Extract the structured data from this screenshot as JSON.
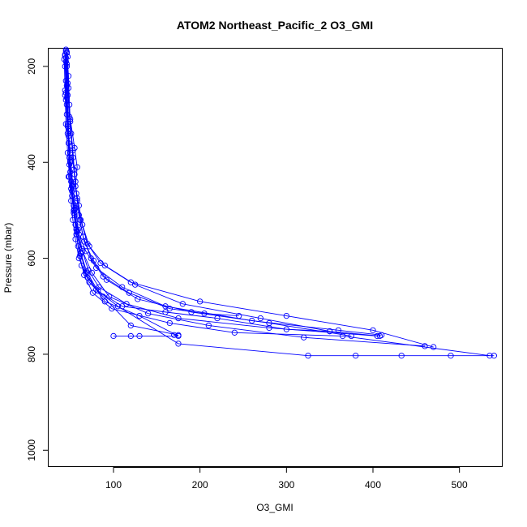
{
  "chart_data": {
    "type": "line",
    "title": "ATOM2 Northeast_Pacific_2 O3_GMI",
    "xlabel": "O3_GMI",
    "ylabel": "Pressure (mbar)",
    "xlim": [
      25,
      550
    ],
    "ylim": [
      1035,
      163
    ],
    "y_reversed": true,
    "grid": false,
    "x_ticks": [
      100,
      200,
      300,
      400,
      500
    ],
    "y_ticks": [
      200,
      400,
      600,
      800,
      1000
    ],
    "color": "#0000ff",
    "markers": "open-circle",
    "series": [
      {
        "values": [
          [
            45,
            165
          ],
          [
            46,
            200
          ],
          [
            44,
            260
          ],
          [
            47,
            320
          ],
          [
            50,
            380
          ],
          [
            48,
            430
          ],
          [
            52,
            470
          ],
          [
            55,
            510
          ],
          [
            60,
            550
          ],
          [
            68,
            585
          ],
          [
            80,
            620
          ],
          [
            110,
            660
          ],
          [
            160,
            700
          ],
          [
            260,
            730
          ],
          [
            360,
            750
          ],
          [
            410,
            760
          ]
        ]
      },
      {
        "values": [
          [
            46,
            170
          ],
          [
            48,
            220
          ],
          [
            49,
            280
          ],
          [
            51,
            340
          ],
          [
            53,
            390
          ],
          [
            56,
            440
          ],
          [
            58,
            480
          ],
          [
            62,
            520
          ],
          [
            70,
            570
          ],
          [
            85,
            610
          ],
          [
            120,
            650
          ],
          [
            200,
            690
          ],
          [
            300,
            720
          ],
          [
            400,
            750
          ],
          [
            470,
            785
          ]
        ]
      },
      {
        "values": [
          [
            44,
            175
          ],
          [
            45,
            230
          ],
          [
            46,
            300
          ],
          [
            48,
            360
          ],
          [
            50,
            420
          ],
          [
            52,
            460
          ],
          [
            54,
            500
          ],
          [
            57,
            540
          ],
          [
            63,
            580
          ],
          [
            75,
            630
          ],
          [
            95,
            680
          ],
          [
            140,
            715
          ],
          [
            210,
            740
          ],
          [
            320,
            765
          ],
          [
            460,
            783
          ]
        ]
      },
      {
        "values": [
          [
            47,
            180
          ],
          [
            46,
            240
          ],
          [
            50,
            310
          ],
          [
            55,
            370
          ],
          [
            58,
            410
          ],
          [
            56,
            450
          ],
          [
            60,
            490
          ],
          [
            64,
            530
          ],
          [
            72,
            575
          ],
          [
            90,
            615
          ],
          [
            125,
            655
          ],
          [
            180,
            695
          ],
          [
            270,
            725
          ],
          [
            350,
            752
          ],
          [
            408,
            762
          ]
        ]
      },
      {
        "values": [
          [
            43,
            185
          ],
          [
            44,
            250
          ],
          [
            45,
            320
          ],
          [
            47,
            380
          ],
          [
            49,
            430
          ],
          [
            51,
            480
          ],
          [
            53,
            520
          ],
          [
            56,
            560
          ],
          [
            60,
            600
          ],
          [
            70,
            640
          ],
          [
            90,
            690
          ],
          [
            130,
            720
          ],
          [
            175,
            762
          ],
          [
            130,
            762
          ],
          [
            120,
            762
          ],
          [
            100,
            762
          ]
        ]
      },
      {
        "values": [
          [
            45,
            190
          ],
          [
            47,
            260
          ],
          [
            48,
            330
          ],
          [
            50,
            400
          ],
          [
            52,
            450
          ],
          [
            55,
            500
          ],
          [
            58,
            545
          ],
          [
            62,
            590
          ],
          [
            68,
            630
          ],
          [
            80,
            665
          ],
          [
            105,
            700
          ],
          [
            175,
            778
          ],
          [
            325,
            803
          ],
          [
            380,
            803
          ],
          [
            433,
            803
          ],
          [
            490,
            803
          ],
          [
            540,
            803
          ]
        ]
      },
      {
        "values": [
          [
            46,
            195
          ],
          [
            45,
            270
          ],
          [
            47,
            340
          ],
          [
            49,
            405
          ],
          [
            51,
            455
          ],
          [
            54,
            505
          ],
          [
            57,
            550
          ],
          [
            61,
            595
          ],
          [
            66,
            635
          ],
          [
            76,
            672
          ],
          [
            98,
            705
          ],
          [
            165,
            735
          ],
          [
            240,
            755
          ],
          [
            365,
            762
          ],
          [
            535,
            803
          ]
        ]
      },
      {
        "values": [
          [
            44,
            200
          ],
          [
            46,
            280
          ],
          [
            48,
            345
          ],
          [
            50,
            395
          ],
          [
            53,
            445
          ],
          [
            56,
            495
          ],
          [
            59,
            540
          ],
          [
            64,
            585
          ],
          [
            71,
            625
          ],
          [
            83,
            660
          ],
          [
            115,
            695
          ],
          [
            175,
            725
          ],
          [
            280,
            745
          ],
          [
            405,
            762
          ]
        ]
      },
      {
        "values": [
          [
            45,
            168
          ],
          [
            47,
            235
          ],
          [
            49,
            305
          ],
          [
            52,
            365
          ],
          [
            54,
            415
          ],
          [
            57,
            465
          ],
          [
            60,
            510
          ],
          [
            65,
            555
          ],
          [
            74,
            600
          ],
          [
            88,
            638
          ],
          [
            118,
            672
          ],
          [
            165,
            705
          ],
          [
            205,
            715
          ],
          [
            245,
            720
          ]
        ]
      },
      {
        "values": [
          [
            46,
            172
          ],
          [
            48,
            245
          ],
          [
            50,
            315
          ],
          [
            53,
            375
          ],
          [
            55,
            425
          ],
          [
            58,
            475
          ],
          [
            61,
            520
          ],
          [
            66,
            565
          ],
          [
            77,
            605
          ],
          [
            92,
            645
          ],
          [
            128,
            685
          ],
          [
            190,
            712
          ],
          [
            280,
            735
          ],
          [
            375,
            762
          ]
        ]
      },
      {
        "values": [
          [
            44,
            178
          ],
          [
            45,
            255
          ],
          [
            47,
            325
          ],
          [
            49,
            390
          ],
          [
            51,
            440
          ],
          [
            54,
            490
          ],
          [
            56,
            530
          ],
          [
            59,
            575
          ],
          [
            63,
            615
          ],
          [
            72,
            650
          ],
          [
            88,
            680
          ],
          [
            120,
            740
          ],
          [
            175,
            760
          ],
          [
            170,
            760
          ]
        ]
      },
      {
        "values": [
          [
            45,
            182
          ],
          [
            46,
            265
          ],
          [
            48,
            335
          ],
          [
            50,
            398
          ],
          [
            52,
            448
          ],
          [
            55,
            498
          ],
          [
            58,
            543
          ],
          [
            62,
            588
          ],
          [
            69,
            628
          ],
          [
            82,
            668
          ],
          [
            110,
            700
          ],
          [
            160,
            712
          ],
          [
            220,
            725
          ],
          [
            300,
            748
          ],
          [
            350,
            752
          ]
        ]
      }
    ]
  }
}
